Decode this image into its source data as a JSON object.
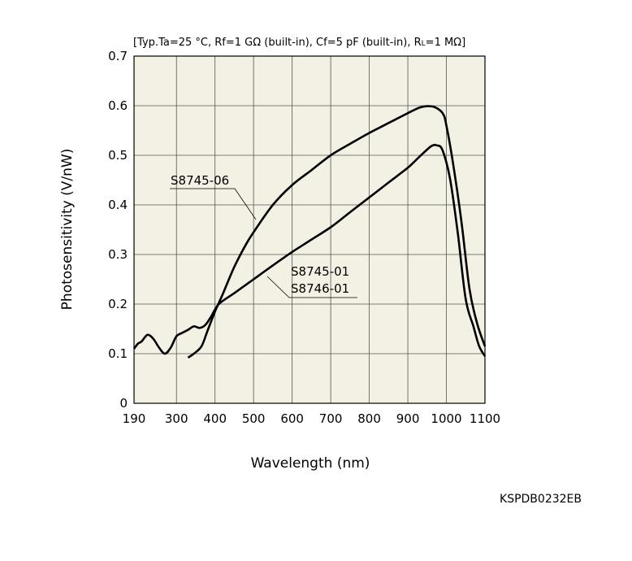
{
  "chart_data": {
    "type": "line",
    "conditions": "[Typ.Ta=25 °C, Rf=1 GΩ (built-in), Cf=5 pF (built-in), R",
    "conditions_sub": "L",
    "conditions_end": "=1 MΩ]",
    "xlabel": "Wavelength (nm)",
    "ylabel": "Photosensitivity (V/nW)",
    "xlim": [
      190,
      1100
    ],
    "ylim": [
      0,
      0.7
    ],
    "x_ticks": [
      190,
      300,
      400,
      500,
      600,
      700,
      800,
      900,
      1000,
      1100
    ],
    "y_ticks": [
      0,
      0.1,
      0.2,
      0.3,
      0.4,
      0.5,
      0.6,
      0.7
    ],
    "y_tick_labels": [
      "0",
      "0.1",
      "0.2",
      "0.3",
      "0.4",
      "0.5",
      "0.6",
      "0.7"
    ],
    "grid": true,
    "series": [
      {
        "name": "S8745-06",
        "points": [
          [
            330,
            0.092
          ],
          [
            345,
            0.1
          ],
          [
            365,
            0.115
          ],
          [
            380,
            0.145
          ],
          [
            400,
            0.185
          ],
          [
            420,
            0.22
          ],
          [
            450,
            0.275
          ],
          [
            480,
            0.32
          ],
          [
            500,
            0.345
          ],
          [
            550,
            0.4
          ],
          [
            600,
            0.44
          ],
          [
            650,
            0.47
          ],
          [
            700,
            0.5
          ],
          [
            750,
            0.523
          ],
          [
            800,
            0.545
          ],
          [
            850,
            0.565
          ],
          [
            900,
            0.585
          ],
          [
            930,
            0.596
          ],
          [
            950,
            0.599
          ],
          [
            970,
            0.597
          ],
          [
            990,
            0.585
          ],
          [
            1000,
            0.56
          ],
          [
            1020,
            0.47
          ],
          [
            1040,
            0.36
          ],
          [
            1060,
            0.23
          ],
          [
            1080,
            0.16
          ],
          [
            1100,
            0.115
          ]
        ]
      },
      {
        "name": "S8745-01",
        "name2": "S8746-01",
        "points": [
          [
            190,
            0.11
          ],
          [
            200,
            0.12
          ],
          [
            210,
            0.125
          ],
          [
            225,
            0.138
          ],
          [
            240,
            0.13
          ],
          [
            255,
            0.112
          ],
          [
            270,
            0.1
          ],
          [
            285,
            0.112
          ],
          [
            300,
            0.135
          ],
          [
            315,
            0.142
          ],
          [
            330,
            0.148
          ],
          [
            345,
            0.155
          ],
          [
            360,
            0.152
          ],
          [
            375,
            0.158
          ],
          [
            390,
            0.175
          ],
          [
            410,
            0.2
          ],
          [
            450,
            0.222
          ],
          [
            500,
            0.25
          ],
          [
            550,
            0.278
          ],
          [
            600,
            0.305
          ],
          [
            650,
            0.33
          ],
          [
            700,
            0.355
          ],
          [
            750,
            0.385
          ],
          [
            800,
            0.415
          ],
          [
            850,
            0.445
          ],
          [
            900,
            0.475
          ],
          [
            930,
            0.497
          ],
          [
            960,
            0.518
          ],
          [
            975,
            0.52
          ],
          [
            990,
            0.51
          ],
          [
            1010,
            0.45
          ],
          [
            1030,
            0.34
          ],
          [
            1050,
            0.21
          ],
          [
            1070,
            0.155
          ],
          [
            1085,
            0.115
          ],
          [
            1100,
            0.095
          ]
        ]
      }
    ],
    "code": "KSPDB0232EB"
  }
}
